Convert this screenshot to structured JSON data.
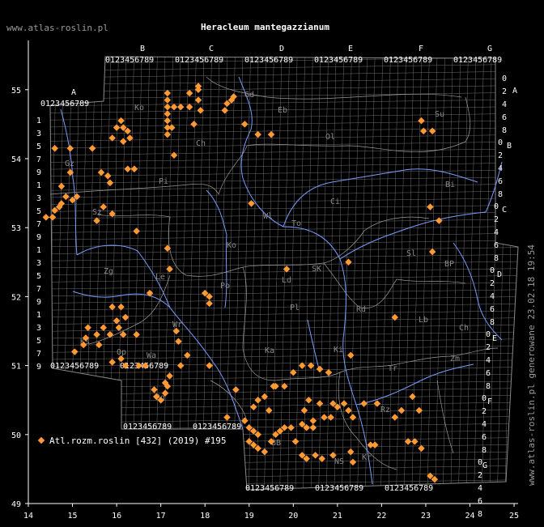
{
  "header": {
    "site": "www.atlas-roslin.pl",
    "title": "Heracleum mantegazzianum",
    "generated": "www.atlas-roslin.pl generowane 23.02.18 19:54"
  },
  "legend": {
    "label": "Atl.rozm.roslin [432] (2019) #195"
  },
  "axes": {
    "lon_ticks": [
      "14",
      "15",
      "16",
      "17",
      "18",
      "19",
      "20",
      "21",
      "22",
      "23",
      "24",
      "25"
    ],
    "lat_ticks": [
      "49",
      "50",
      "51",
      "52",
      "53",
      "54",
      "55"
    ]
  },
  "colors": {
    "background": "#000000",
    "grid": "#8a8a8a",
    "rivers": "#7a9cff",
    "borders": "#a0a0a0",
    "points": "#ff9933"
  },
  "grid": {
    "top_letters": [
      "B",
      "C",
      "D",
      "E",
      "F",
      "G"
    ],
    "left_letters": [
      "A"
    ],
    "right_letters": [
      "A",
      "B",
      "C",
      "D",
      "E",
      "F",
      "G"
    ],
    "digits": "0123456789"
  },
  "regions": [
    "Ko",
    "Gd",
    "Eb",
    "Su",
    "Ol",
    "Ch",
    "Pi",
    "Bi",
    "Gz",
    "Ci",
    "Wl",
    "To",
    "Sz",
    "Ko",
    "Sl",
    "BP",
    "Zg",
    "Le",
    "Ld",
    "SK",
    "Po",
    "Wr",
    "Pl",
    "Rd",
    "Lb",
    "Op",
    "Ki",
    "Ch",
    "Zm",
    "Tr",
    "Ka",
    "Rz",
    "NS",
    "Kr",
    "BB",
    "Ks",
    "Wa",
    "Bd"
  ],
  "chart_data": {
    "type": "scatter",
    "x_unit": "longitude (deg E)",
    "y_unit": "latitude (deg N)",
    "xlim": [
      14,
      25
    ],
    "ylim": [
      49,
      55.5
    ],
    "series": [
      {
        "name": "Atl.rozm.roslin [432] (2019) #195",
        "points": [
          [
            17.15,
            54.95
          ],
          [
            17.15,
            54.85
          ],
          [
            17.15,
            54.75
          ],
          [
            17.15,
            54.65
          ],
          [
            17.15,
            54.55
          ],
          [
            17.15,
            54.45
          ],
          [
            17.15,
            54.35
          ],
          [
            17.3,
            54.75
          ],
          [
            17.45,
            54.75
          ],
          [
            17.65,
            54.95
          ],
          [
            17.65,
            54.75
          ],
          [
            17.75,
            54.5
          ],
          [
            17.85,
            55.0
          ],
          [
            17.85,
            54.85
          ],
          [
            17.9,
            54.7
          ],
          [
            17.85,
            55.05
          ],
          [
            18.5,
            54.8
          ],
          [
            18.6,
            54.85
          ],
          [
            18.65,
            54.9
          ],
          [
            18.45,
            54.7
          ],
          [
            18.9,
            54.5
          ],
          [
            19.2,
            54.35
          ],
          [
            19.5,
            54.35
          ],
          [
            16.0,
            54.45
          ],
          [
            16.1,
            54.55
          ],
          [
            16.15,
            54.45
          ],
          [
            16.25,
            54.4
          ],
          [
            16.3,
            54.3
          ],
          [
            16.15,
            54.25
          ],
          [
            15.9,
            54.3
          ],
          [
            15.45,
            54.15
          ],
          [
            14.6,
            54.15
          ],
          [
            17.3,
            54.05
          ],
          [
            15.65,
            53.8
          ],
          [
            16.25,
            53.85
          ],
          [
            16.4,
            53.85
          ],
          [
            15.8,
            53.75
          ],
          [
            15.85,
            53.65
          ],
          [
            14.95,
            53.8
          ],
          [
            14.75,
            53.6
          ],
          [
            15.1,
            53.45
          ],
          [
            15.0,
            53.4
          ],
          [
            14.85,
            53.45
          ],
          [
            14.75,
            53.35
          ],
          [
            14.7,
            53.3
          ],
          [
            14.6,
            53.25
          ],
          [
            14.55,
            53.15
          ],
          [
            14.4,
            53.15
          ],
          [
            15.7,
            53.3
          ],
          [
            15.9,
            53.2
          ],
          [
            15.55,
            53.1
          ],
          [
            16.45,
            52.95
          ],
          [
            17.15,
            52.7
          ],
          [
            17.2,
            52.4
          ],
          [
            19.05,
            53.35
          ],
          [
            19.85,
            52.4
          ],
          [
            21.25,
            52.5
          ],
          [
            23.1,
            53.3
          ],
          [
            23.3,
            53.1
          ],
          [
            23.15,
            52.65
          ],
          [
            22.9,
            54.55
          ],
          [
            22.95,
            54.4
          ],
          [
            23.15,
            54.4
          ],
          [
            16.75,
            52.05
          ],
          [
            18.1,
            52.0
          ],
          [
            18.1,
            51.9
          ],
          [
            16.1,
            51.85
          ],
          [
            15.9,
            51.85
          ],
          [
            16.0,
            51.65
          ],
          [
            16.05,
            51.55
          ],
          [
            15.7,
            51.55
          ],
          [
            15.85,
            51.45
          ],
          [
            15.35,
            51.55
          ],
          [
            15.3,
            51.4
          ],
          [
            15.25,
            51.3
          ],
          [
            15.05,
            51.2
          ],
          [
            15.6,
            51.3
          ],
          [
            16.15,
            51.45
          ],
          [
            16.45,
            51.45
          ],
          [
            15.9,
            51.05
          ],
          [
            16.1,
            51.1
          ],
          [
            16.2,
            51.0
          ],
          [
            16.5,
            51.0
          ],
          [
            16.65,
            51.0
          ],
          [
            16.85,
            50.65
          ],
          [
            16.9,
            50.55
          ],
          [
            17.0,
            50.5
          ],
          [
            17.1,
            50.6
          ],
          [
            17.15,
            50.7
          ],
          [
            17.1,
            50.75
          ],
          [
            17.2,
            50.85
          ],
          [
            17.35,
            51.5
          ],
          [
            17.4,
            51.35
          ],
          [
            17.45,
            51.0
          ],
          [
            17.6,
            51.15
          ],
          [
            18.1,
            51.0
          ],
          [
            18.5,
            50.25
          ],
          [
            18.7,
            50.65
          ],
          [
            18.9,
            50.2
          ],
          [
            19.0,
            50.1
          ],
          [
            19.1,
            50.05
          ],
          [
            19.2,
            50.0
          ],
          [
            19.0,
            49.9
          ],
          [
            19.1,
            49.85
          ],
          [
            19.2,
            49.8
          ],
          [
            19.35,
            49.75
          ],
          [
            19.5,
            49.9
          ],
          [
            19.6,
            50.0
          ],
          [
            19.7,
            50.05
          ],
          [
            19.8,
            50.1
          ],
          [
            19.95,
            50.1
          ],
          [
            20.05,
            49.9
          ],
          [
            19.1,
            50.4
          ],
          [
            19.2,
            50.5
          ],
          [
            19.35,
            50.55
          ],
          [
            19.45,
            50.35
          ],
          [
            19.6,
            50.7
          ],
          [
            19.8,
            50.7
          ],
          [
            20.0,
            50.9
          ],
          [
            20.2,
            51.0
          ],
          [
            20.4,
            51.0
          ],
          [
            20.6,
            50.95
          ],
          [
            20.8,
            50.9
          ],
          [
            20.35,
            50.5
          ],
          [
            20.25,
            50.35
          ],
          [
            20.45,
            50.2
          ],
          [
            20.6,
            50.45
          ],
          [
            20.2,
            50.15
          ],
          [
            20.3,
            50.1
          ],
          [
            20.45,
            50.1
          ],
          [
            20.7,
            50.25
          ],
          [
            20.85,
            50.25
          ],
          [
            20.9,
            50.45
          ],
          [
            21.0,
            50.4
          ],
          [
            21.25,
            50.35
          ],
          [
            21.35,
            50.25
          ],
          [
            21.15,
            50.45
          ],
          [
            21.6,
            50.45
          ],
          [
            21.9,
            50.45
          ],
          [
            22.3,
            50.25
          ],
          [
            22.45,
            50.35
          ],
          [
            22.7,
            50.55
          ],
          [
            22.85,
            50.35
          ],
          [
            22.6,
            49.9
          ],
          [
            22.75,
            49.9
          ],
          [
            22.9,
            49.8
          ],
          [
            21.85,
            49.85
          ],
          [
            21.75,
            49.85
          ],
          [
            20.3,
            49.65
          ],
          [
            20.5,
            49.7
          ],
          [
            20.65,
            49.65
          ],
          [
            20.9,
            49.7
          ],
          [
            21.3,
            49.75
          ],
          [
            21.35,
            49.6
          ],
          [
            20.2,
            49.7
          ],
          [
            23.1,
            49.4
          ],
          [
            23.2,
            49.35
          ],
          [
            22.3,
            51.7
          ],
          [
            21.3,
            51.15
          ],
          [
            19.55,
            50.7
          ],
          [
            18.0,
            52.05
          ],
          [
            15.55,
            51.45
          ],
          [
            16.2,
            51.7
          ],
          [
            14.95,
            54.15
          ],
          [
            17.25,
            54.45
          ]
        ]
      }
    ]
  }
}
